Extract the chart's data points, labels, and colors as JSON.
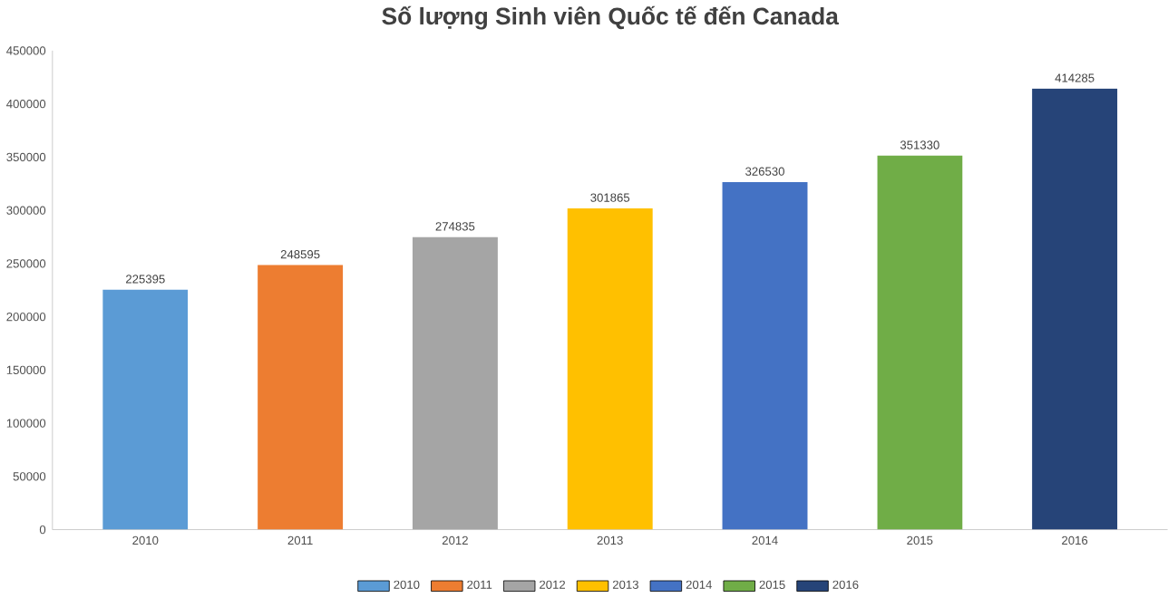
{
  "chart_data": {
    "type": "bar",
    "title": "Số lượng Sinh viên Quốc tế đến Canada",
    "categories": [
      "2010",
      "2011",
      "2012",
      "2013",
      "2014",
      "2015",
      "2016"
    ],
    "series": [
      {
        "name": "2010",
        "color": "#5b9bd5",
        "values": [
          225395,
          null,
          null,
          null,
          null,
          null,
          null
        ]
      },
      {
        "name": "2011",
        "color": "#ed7d31",
        "values": [
          null,
          248595,
          null,
          null,
          null,
          null,
          null
        ]
      },
      {
        "name": "2012",
        "color": "#a5a5a5",
        "values": [
          null,
          null,
          274835,
          null,
          null,
          null,
          null
        ]
      },
      {
        "name": "2013",
        "color": "#ffc000",
        "values": [
          null,
          null,
          null,
          301865,
          null,
          null,
          null
        ]
      },
      {
        "name": "2014",
        "color": "#4472c4",
        "values": [
          null,
          null,
          null,
          null,
          326530,
          null,
          null
        ]
      },
      {
        "name": "2015",
        "color": "#70ad47",
        "values": [
          null,
          null,
          null,
          null,
          null,
          351330,
          null
        ]
      },
      {
        "name": "2016",
        "color": "#264478",
        "values": [
          null,
          null,
          null,
          null,
          null,
          null,
          414285
        ]
      }
    ],
    "ylim": [
      0,
      450000
    ],
    "yticks": [
      0,
      50000,
      100000,
      150000,
      200000,
      250000,
      300000,
      350000,
      400000,
      450000
    ],
    "data_labels": true,
    "legend": "bottom"
  }
}
